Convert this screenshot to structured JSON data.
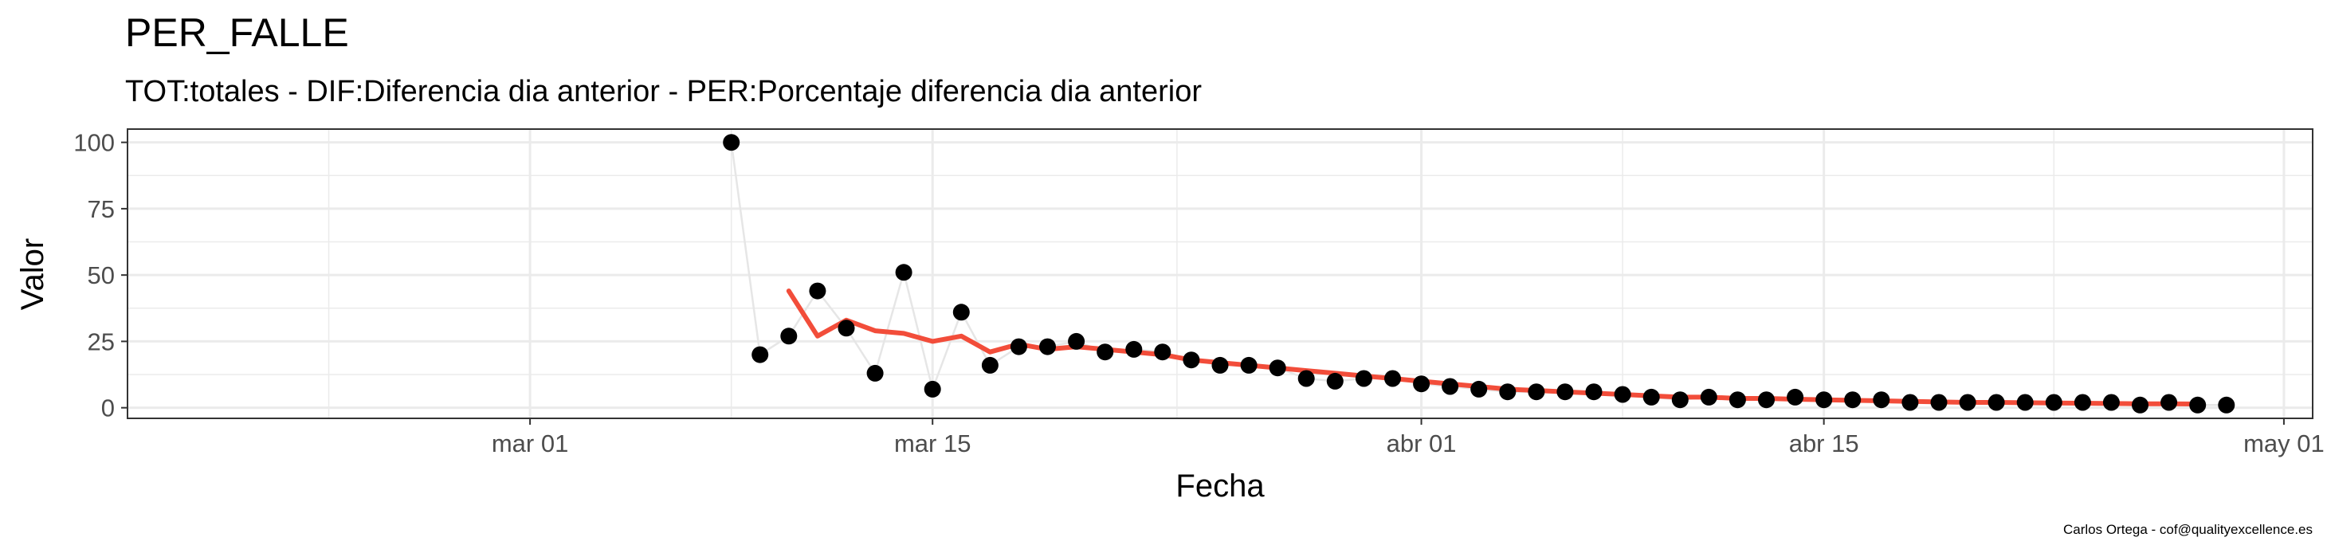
{
  "chart_data": {
    "type": "scatter",
    "title": "PER_FALLE",
    "subtitle": "TOT:totales - DIF:Diferencia dia anterior - PER:Porcentaje diferencia dia anterior",
    "xlabel": "Fecha",
    "ylabel": "Valor",
    "caption": "Carlos Ortega - cof@qualityexcellence.es",
    "x_range": [
      "2020-02-16",
      "2020-05-02"
    ],
    "ylim": [
      -4,
      105
    ],
    "x_ticks": [
      {
        "date": "2020-03-01",
        "label": "mar 01"
      },
      {
        "date": "2020-03-15",
        "label": "mar 15"
      },
      {
        "date": "2020-04-01",
        "label": "abr 01"
      },
      {
        "date": "2020-04-15",
        "label": "abr 15"
      },
      {
        "date": "2020-05-01",
        "label": "may 01"
      }
    ],
    "y_ticks": [
      0,
      25,
      50,
      75,
      100
    ],
    "grid": true,
    "colors": {
      "points": "#000000",
      "connector": "#e6e6e6",
      "smooth": "#f24d3a",
      "grid": "#ebebeb",
      "border": "#333333"
    },
    "series": [
      {
        "type": "points",
        "x": [
          "2020-03-08",
          "2020-03-09",
          "2020-03-10",
          "2020-03-11",
          "2020-03-12",
          "2020-03-13",
          "2020-03-14",
          "2020-03-15",
          "2020-03-16",
          "2020-03-17",
          "2020-03-18",
          "2020-03-19",
          "2020-03-20",
          "2020-03-21",
          "2020-03-22",
          "2020-03-23",
          "2020-03-24",
          "2020-03-25",
          "2020-03-26",
          "2020-03-27",
          "2020-03-28",
          "2020-03-29",
          "2020-03-30",
          "2020-03-31",
          "2020-04-01",
          "2020-04-02",
          "2020-04-03",
          "2020-04-04",
          "2020-04-05",
          "2020-04-06",
          "2020-04-07",
          "2020-04-08",
          "2020-04-09",
          "2020-04-10",
          "2020-04-11",
          "2020-04-12",
          "2020-04-13",
          "2020-04-14",
          "2020-04-15",
          "2020-04-16",
          "2020-04-17",
          "2020-04-18",
          "2020-04-19",
          "2020-04-20",
          "2020-04-21",
          "2020-04-22",
          "2020-04-23",
          "2020-04-24",
          "2020-04-25",
          "2020-04-26",
          "2020-04-27",
          "2020-04-28",
          "2020-04-29"
        ],
        "values": [
          100,
          20,
          27,
          44,
          30,
          13,
          51,
          7,
          36,
          16,
          23,
          23,
          25,
          21,
          22,
          21,
          18,
          16,
          16,
          15,
          11,
          10,
          11,
          11,
          9,
          8,
          7,
          6,
          6,
          6,
          6,
          5,
          4,
          3,
          4,
          3,
          3,
          4,
          3,
          3,
          3,
          2,
          2,
          2,
          2,
          2,
          2,
          2,
          2,
          1,
          2,
          1,
          1
        ]
      },
      {
        "type": "smooth",
        "x": [
          "2020-03-10",
          "2020-03-11",
          "2020-03-12",
          "2020-03-13",
          "2020-03-14",
          "2020-03-15",
          "2020-03-16",
          "2020-03-17",
          "2020-03-18",
          "2020-03-19",
          "2020-03-20",
          "2020-03-21",
          "2020-03-22",
          "2020-03-23",
          "2020-03-24",
          "2020-03-25",
          "2020-03-26",
          "2020-03-27",
          "2020-03-28",
          "2020-03-29",
          "2020-03-30",
          "2020-03-31",
          "2020-04-01",
          "2020-04-02",
          "2020-04-03",
          "2020-04-04",
          "2020-04-05",
          "2020-04-06",
          "2020-04-07",
          "2020-04-08",
          "2020-04-09",
          "2020-04-10",
          "2020-04-11",
          "2020-04-12",
          "2020-04-13",
          "2020-04-14",
          "2020-04-15",
          "2020-04-16",
          "2020-04-17",
          "2020-04-18",
          "2020-04-19",
          "2020-04-20",
          "2020-04-21",
          "2020-04-22",
          "2020-04-23",
          "2020-04-24",
          "2020-04-25",
          "2020-04-26",
          "2020-04-27",
          "2020-04-28"
        ],
        "values": [
          44,
          27,
          33,
          29,
          28,
          25,
          27,
          21,
          24,
          22,
          23,
          22,
          21,
          20,
          18,
          17,
          16,
          15,
          14,
          13,
          12,
          11,
          10,
          9,
          8,
          7,
          6.5,
          6,
          5.5,
          5,
          4.5,
          4,
          4,
          3.5,
          3.5,
          3.2,
          3,
          2.8,
          2.6,
          2.4,
          2.2,
          2,
          2,
          1.9,
          1.8,
          1.7,
          1.6,
          1.5,
          1.5,
          1.4
        ]
      }
    ]
  }
}
